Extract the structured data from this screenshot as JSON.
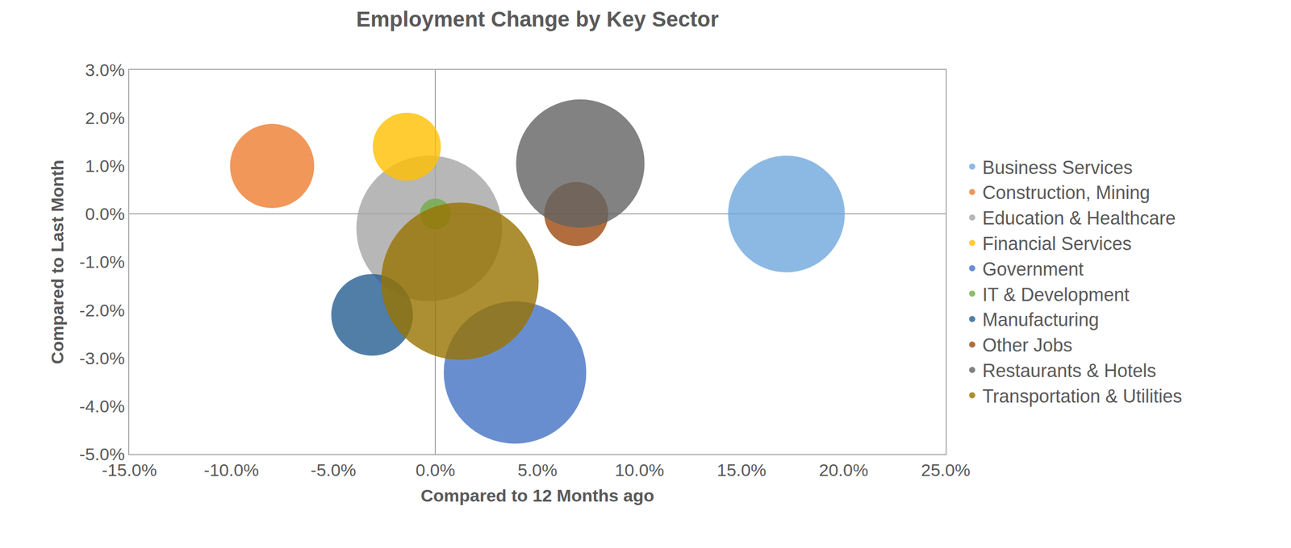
{
  "chart_data": {
    "type": "bubble",
    "title": "Employment Change by Key Sector",
    "x_label": "Compared to 12 Months ago",
    "y_label": "Compared to Last Month",
    "xlim": [
      -15,
      25
    ],
    "xticks": [
      {
        "value": -15,
        "label": "-15.0%"
      },
      {
        "value": -10,
        "label": "-10.0%"
      },
      {
        "value": -5,
        "label": "-5.0%"
      },
      {
        "value": 0,
        "label": "0.0%"
      },
      {
        "value": 5,
        "label": "5.0%"
      },
      {
        "value": 10,
        "label": "10.0%"
      },
      {
        "value": 15,
        "label": "15.0%"
      },
      {
        "value": 20,
        "label": "20.0%"
      },
      {
        "value": 25,
        "label": "25.0%"
      }
    ],
    "ylim": [
      -5,
      3
    ],
    "yticks": [
      {
        "value": -5,
        "label": "-5.0%"
      },
      {
        "value": -4,
        "label": "-4.0%"
      },
      {
        "value": -3,
        "label": "-3.0%"
      },
      {
        "value": -2,
        "label": "-2.0%"
      },
      {
        "value": -1,
        "label": "-1.0%"
      },
      {
        "value": 0,
        "label": "0.0%"
      },
      {
        "value": 1,
        "label": "1.0%"
      },
      {
        "value": 2,
        "label": "2.0%"
      },
      {
        "value": 3,
        "label": "3.0%"
      }
    ],
    "grid": false,
    "legend": "right",
    "series": [
      {
        "name": "Business Services",
        "color": "#6fa8dc",
        "x": [
          17.2
        ],
        "values": [
          0.0
        ],
        "sizes": [
          100
        ]
      },
      {
        "name": "Construction, Mining",
        "color": "#ed7d31",
        "x": [
          -8.0
        ],
        "values": [
          1.0
        ],
        "sizes": [
          52
        ]
      },
      {
        "name": "Education & Healthcare",
        "color": "#a5a5a5",
        "x": [
          -0.3
        ],
        "values": [
          -0.3
        ],
        "sizes": [
          156
        ]
      },
      {
        "name": "Financial Services",
        "color": "#ffc000",
        "x": [
          -1.4
        ],
        "values": [
          1.4
        ],
        "sizes": [
          34
        ]
      },
      {
        "name": "Government",
        "color": "#4472c4",
        "x": [
          3.9
        ],
        "values": [
          -3.3
        ],
        "sizes": [
          149
        ]
      },
      {
        "name": "IT & Development",
        "color": "#70ad47",
        "x": [
          0.0
        ],
        "values": [
          0.0
        ],
        "sizes": [
          7
        ]
      },
      {
        "name": "Manufacturing",
        "color": "#255e91",
        "x": [
          -3.1
        ],
        "values": [
          -2.1
        ],
        "sizes": [
          49
        ]
      },
      {
        "name": "Other Jobs",
        "color": "#9e480e",
        "x": [
          6.9
        ],
        "values": [
          0.0
        ],
        "sizes": [
          30
        ]
      },
      {
        "name": "Restaurants & Hotels",
        "color": "#636363",
        "x": [
          7.1
        ],
        "values": [
          1.05
        ],
        "sizes": [
          121
        ]
      },
      {
        "name": "Transportation & Utilities",
        "color": "#997300",
        "x": [
          1.2
        ],
        "values": [
          -1.4
        ],
        "sizes": [
          182
        ]
      }
    ]
  }
}
